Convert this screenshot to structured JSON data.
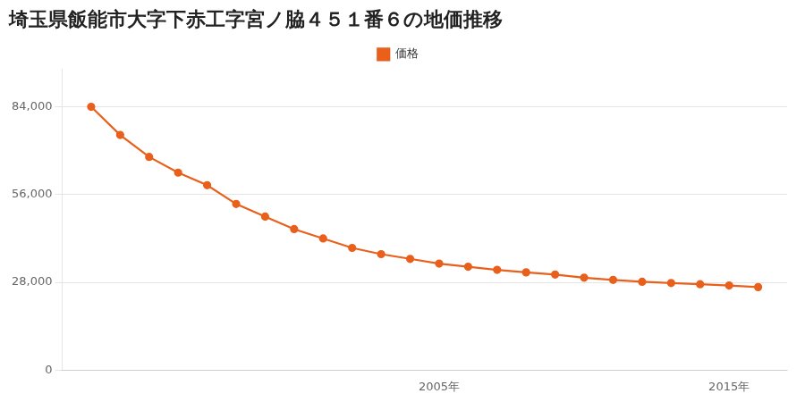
{
  "chart_data": {
    "type": "line",
    "title": "埼玉県飯能市大字下赤工字宮ノ脇４５１番６の地価推移",
    "x": [
      1993,
      1994,
      1995,
      1996,
      1997,
      1998,
      1999,
      2000,
      2001,
      2002,
      2003,
      2004,
      2005,
      2006,
      2007,
      2008,
      2009,
      2010,
      2011,
      2012,
      2013,
      2014,
      2015,
      2016
    ],
    "series": [
      {
        "name": "価格",
        "color": "#e8601c",
        "marker": "circle",
        "values": [
          84000,
          75000,
          68000,
          63000,
          59000,
          53000,
          49000,
          45000,
          42000,
          39000,
          37000,
          35500,
          34000,
          33000,
          32000,
          31200,
          30500,
          29500,
          28800,
          28200,
          27800,
          27400,
          27000,
          26500
        ]
      }
    ],
    "xlim": [
      1992,
      2017
    ],
    "xticks": [
      {
        "value": 2005,
        "label": "2005年"
      },
      {
        "value": 2015,
        "label": "2015年"
      }
    ],
    "ylim": [
      0,
      96000
    ],
    "yticks": [
      0,
      {
        "value": 28000,
        "label": "28,000"
      },
      {
        "value": 56000,
        "label": "56,000"
      },
      {
        "value": 84000,
        "label": "84,000"
      }
    ],
    "grid": "y",
    "legend": "top"
  }
}
